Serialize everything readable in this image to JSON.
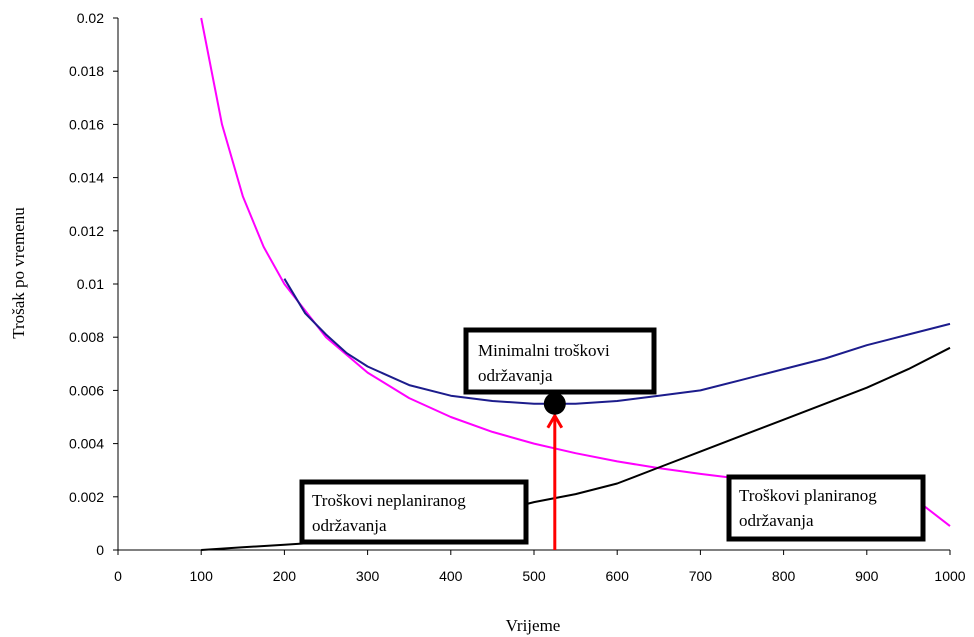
{
  "chart_data": {
    "type": "line",
    "xlabel": "Vrijeme",
    "ylabel": "Trošak po vremenu",
    "xlim": [
      0,
      1000
    ],
    "ylim": [
      0,
      0.02
    ],
    "x_ticks": [
      "0",
      "100",
      "200",
      "300",
      "400",
      "500",
      "600",
      "700",
      "800",
      "900",
      "1000"
    ],
    "y_ticks": [
      "0",
      "0.002",
      "0.004",
      "0.006",
      "0.008",
      "0.01",
      "0.012",
      "0.014",
      "0.016",
      "0.018",
      "0.02"
    ],
    "grid": false,
    "series": [
      {
        "color": "#ff00ff",
        "x": [
          100,
          125,
          150,
          175,
          200,
          250,
          300,
          350,
          400,
          450,
          500,
          550,
          600,
          650,
          700,
          750,
          800,
          850,
          900,
          950,
          1000
        ],
        "y": [
          0.02,
          0.016,
          0.0133,
          0.0114,
          0.01,
          0.008,
          0.00667,
          0.00571,
          0.005,
          0.00444,
          0.004,
          0.00364,
          0.00333,
          0.00308,
          0.00286,
          0.00267,
          0.0025,
          0.00235,
          0.00222,
          0.00211,
          0.0009
        ]
      },
      {
        "color": "#000000",
        "x": [
          100,
          150,
          200,
          250,
          300,
          350,
          400,
          450,
          500,
          550,
          600,
          650,
          700,
          750,
          800,
          850,
          900,
          950,
          1000
        ],
        "y": [
          0.0,
          0.0001,
          0.0002,
          0.0003,
          0.0005,
          0.0008,
          0.0011,
          0.0014,
          0.0018,
          0.0021,
          0.0025,
          0.0031,
          0.0037,
          0.0043,
          0.0049,
          0.0055,
          0.0061,
          0.0068,
          0.0076
        ]
      },
      {
        "color": "#1c1c8c",
        "x": [
          200,
          225,
          250,
          275,
          300,
          350,
          400,
          450,
          500,
          525,
          550,
          600,
          650,
          700,
          750,
          800,
          850,
          900,
          950,
          1000
        ],
        "y": [
          0.0102,
          0.0089,
          0.0081,
          0.0074,
          0.0069,
          0.0062,
          0.0058,
          0.0056,
          0.0055,
          0.0055,
          0.0055,
          0.0056,
          0.0058,
          0.006,
          0.0064,
          0.0068,
          0.0072,
          0.0077,
          0.0081,
          0.0085
        ]
      }
    ],
    "min_point": {
      "x": 525,
      "y": 0.0055
    },
    "annotations": [
      {
        "lines": [
          "Minimalni troškovi",
          "održavanja"
        ]
      },
      {
        "lines": [
          "Troškovi neplaniranog",
          "održavanja"
        ]
      },
      {
        "lines": [
          "Troškovi planiranog",
          "održavanja"
        ]
      }
    ]
  }
}
